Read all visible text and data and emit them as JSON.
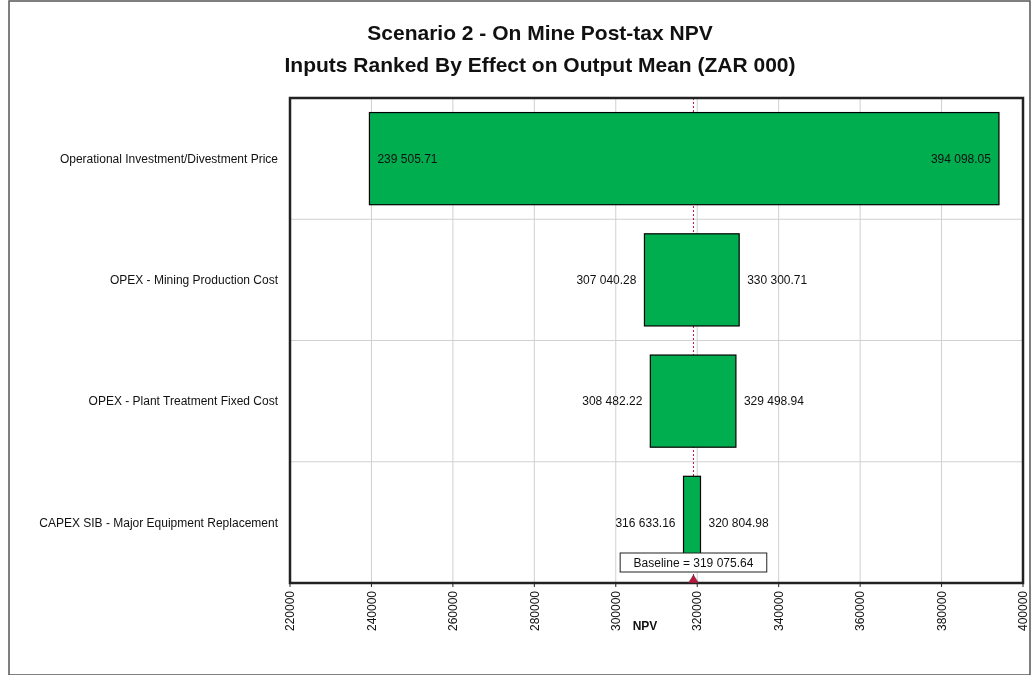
{
  "chart_data": {
    "type": "bar",
    "orientation": "horizontal",
    "title": "Scenario 2 - On Mine Post-tax NPV\nInputs Ranked By Effect on Output Mean (ZAR 000)",
    "xlabel": "NPV",
    "categories": [
      "Operational Investment/Divestment Price",
      "OPEX - Mining Production Cost",
      "OPEX - Plant Treatment Fixed Cost",
      "CAPEX SIB - Major Equipment Replacement"
    ],
    "base": [
      239505.71,
      307040.28,
      308482.22,
      316633.16
    ],
    "values": [
      154592.34,
      23260.43,
      21016.72,
      4171.82
    ],
    "color": "#00ad4f",
    "xlim": [
      220000,
      400000
    ],
    "xticks": [
      220000,
      240000,
      260000,
      280000,
      300000,
      320000,
      340000,
      360000,
      380000,
      400000
    ],
    "grid": true,
    "ref_lines": [
      {
        "axis": "x",
        "value": 319075.64,
        "label": "Baseline = 319 075.64",
        "color": "#c0143c",
        "line_style": "dotted"
      }
    ],
    "annotations": [
      {
        "text": "239 505.71",
        "x": 239505.71,
        "y": "Operational Investment/Divestment Price"
      },
      {
        "text": "394 098.05",
        "x": 394098.05,
        "y": "Operational Investment/Divestment Price"
      },
      {
        "text": "307 040.28",
        "x": 307040.28,
        "y": "OPEX - Mining Production Cost"
      },
      {
        "text": "330 300.71",
        "x": 330300.71,
        "y": "OPEX - Mining Production Cost"
      },
      {
        "text": "308 482.22",
        "x": 308482.22,
        "y": "OPEX - Plant Treatment Fixed Cost"
      },
      {
        "text": "329 498.94",
        "x": 329498.94,
        "y": "OPEX - Plant Treatment Fixed Cost"
      },
      {
        "text": "316 633.16",
        "x": 316633.16,
        "y": "CAPEX SIB - Major Equipment Replacement"
      },
      {
        "text": "320 804.98",
        "x": 320804.98,
        "y": "CAPEX SIB - Major Equipment Replacement"
      }
    ]
  }
}
